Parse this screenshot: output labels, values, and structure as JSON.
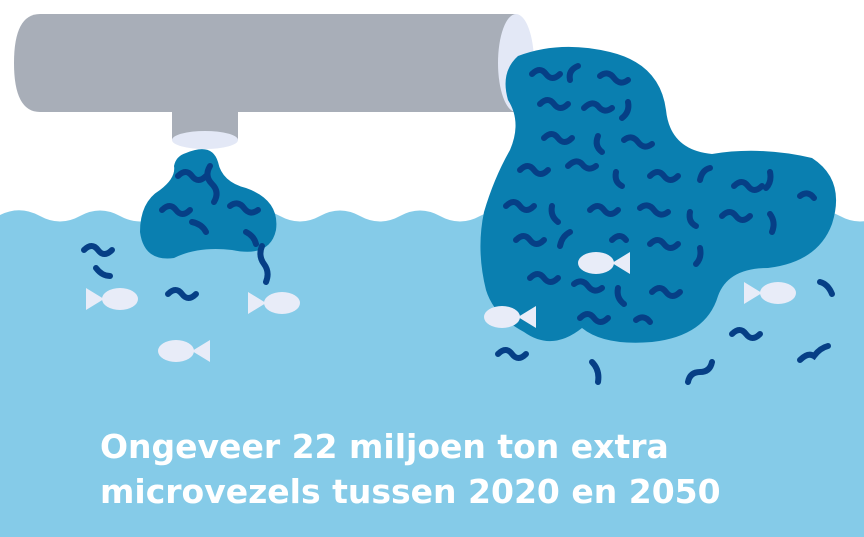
{
  "caption": {
    "line1": "Ongeveer 22 miljoen ton extra",
    "line2": "microvezels tussen 2020 en 2050"
  },
  "colors": {
    "background": "#ffffff",
    "water": "#85cbe8",
    "blob": "#0a7fb0",
    "fiber": "#063f86",
    "pipe": "#a8aeb8",
    "pipe_rim": "#e3e8f6",
    "fish": "#e8ecf8",
    "caption_text": "#ffffff"
  },
  "icons": [
    "drain-pipe-icon",
    "microfiber-icon",
    "fish-icon"
  ]
}
